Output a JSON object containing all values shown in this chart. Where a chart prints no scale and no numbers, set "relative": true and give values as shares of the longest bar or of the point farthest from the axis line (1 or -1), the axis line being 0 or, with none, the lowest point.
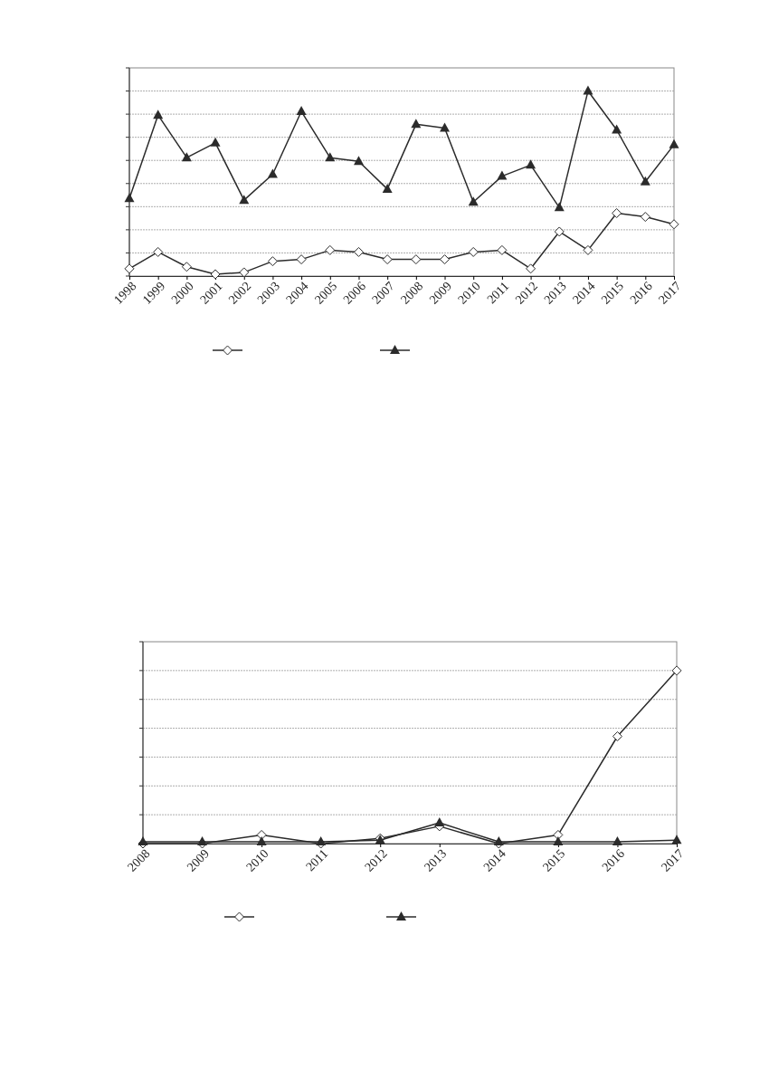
{
  "chart_data": [
    {
      "type": "line",
      "relative": true,
      "categories": [
        "1998",
        "1999",
        "2000",
        "2001",
        "2002",
        "2003",
        "2004",
        "2005",
        "2006",
        "2007",
        "2008",
        "2009",
        "2010",
        "2011",
        "2012",
        "2013",
        "2014",
        "2015",
        "2016",
        "2017"
      ],
      "grid": "y",
      "line_style": "solid",
      "series": [
        {
          "color": "#2b2b2b",
          "marker": "diamond",
          "values": [
            0.04,
            0.13,
            0.05,
            0.01,
            0.02,
            0.08,
            0.09,
            0.14,
            0.13,
            0.09,
            0.09,
            0.09,
            0.13,
            0.14,
            0.04,
            0.24,
            0.14,
            0.34,
            0.32,
            0.28
          ]
        },
        {
          "color": "#2b2b2b",
          "marker": "triangle",
          "values": [
            0.42,
            0.87,
            0.64,
            0.72,
            0.41,
            0.55,
            0.89,
            0.64,
            0.62,
            0.47,
            0.82,
            0.8,
            0.4,
            0.54,
            0.6,
            0.37,
            1,
            0.79,
            0.51,
            0.71
          ]
        }
      ]
    },
    {
      "type": "line",
      "relative": true,
      "categories": [
        "2008",
        "2009",
        "2010",
        "2011",
        "2012",
        "2013",
        "2014",
        "2015",
        "2016",
        "2017"
      ],
      "grid": "y",
      "line_style": "solid",
      "series": [
        {
          "color": "#2b2b2b",
          "marker": "diamond",
          "values": [
            0,
            0,
            0.05,
            0,
            0.03,
            0.1,
            0,
            0.05,
            0.62,
            1
          ]
        },
        {
          "color": "#2b2b2b",
          "marker": "triangle",
          "values": [
            0.01,
            0.01,
            0.01,
            0.01,
            0.02,
            0.12,
            0.01,
            0.01,
            0.01,
            0.02
          ]
        }
      ]
    }
  ]
}
